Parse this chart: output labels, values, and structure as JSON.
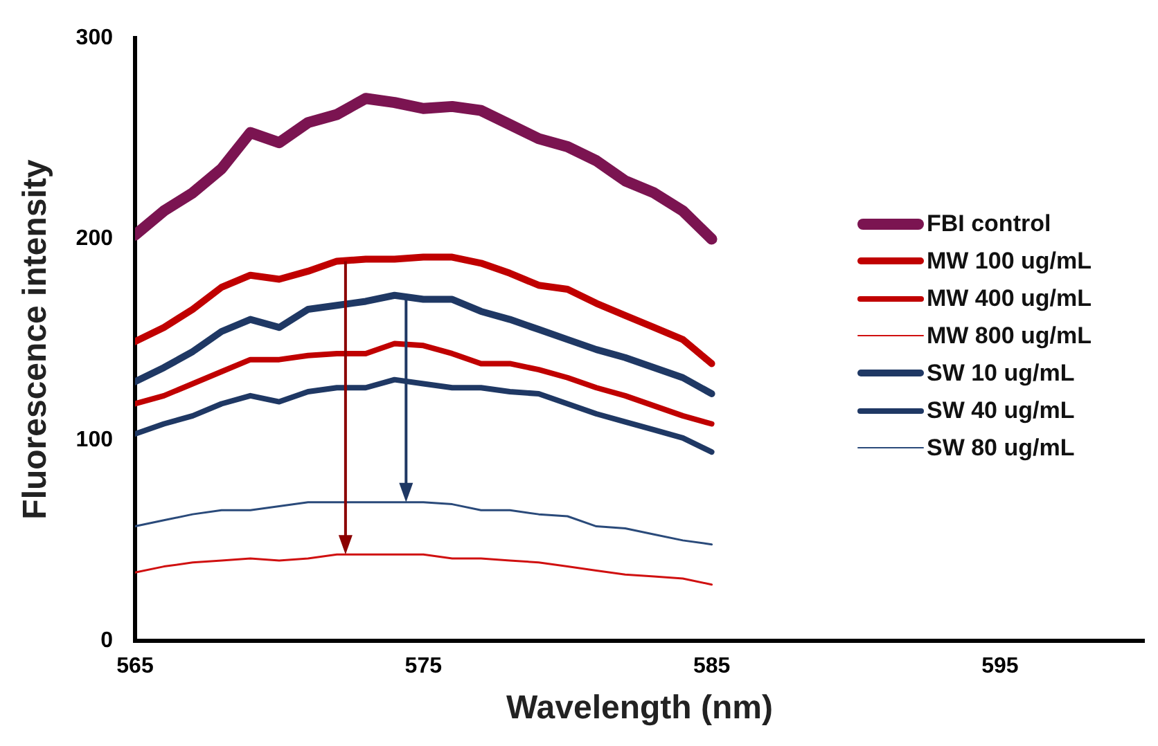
{
  "chart_data": {
    "type": "line",
    "xlabel": "Wavelength (nm)",
    "ylabel": "Fluorescence intensity",
    "x": [
      565,
      566,
      567,
      568,
      569,
      570,
      571,
      572,
      573,
      574,
      575,
      576,
      577,
      578,
      579,
      580,
      581,
      582,
      583,
      584,
      585
    ],
    "series": [
      {
        "name": "FBI control",
        "color": "#7b1451",
        "values": [
          202,
          214,
          223,
          235,
          253,
          248,
          258,
          262,
          270,
          268,
          265,
          266,
          264,
          257,
          250,
          246,
          239,
          229,
          223,
          214,
          200
        ]
      },
      {
        "name": "MW 100 ug/mL",
        "color": "#c00000",
        "values": [
          149,
          156,
          165,
          176,
          182,
          180,
          184,
          189,
          190,
          190,
          191,
          191,
          188,
          183,
          177,
          175,
          168,
          162,
          156,
          150,
          138
        ]
      },
      {
        "name": "MW 400 ug/mL",
        "color": "#c00000",
        "values": [
          118,
          122,
          128,
          134,
          140,
          140,
          142,
          143,
          143,
          148,
          147,
          143,
          138,
          138,
          135,
          131,
          126,
          122,
          117,
          112,
          108
        ]
      },
      {
        "name": "MW 800 ug/mL",
        "color": "#d01010",
        "values": [
          34,
          37,
          39,
          40,
          41,
          40,
          41,
          43,
          43,
          43,
          43,
          41,
          41,
          40,
          39,
          37,
          35,
          33,
          32,
          31,
          28
        ]
      },
      {
        "name": "SW 10 ug/mL",
        "color": "#1f3864",
        "values": [
          129,
          136,
          144,
          154,
          160,
          156,
          165,
          167,
          169,
          172,
          170,
          170,
          164,
          160,
          155,
          150,
          145,
          141,
          136,
          131,
          123
        ]
      },
      {
        "name": "SW 40 ug/mL",
        "color": "#1f3864",
        "values": [
          103,
          108,
          112,
          118,
          122,
          119,
          124,
          126,
          126,
          130,
          128,
          126,
          126,
          124,
          123,
          118,
          113,
          109,
          105,
          101,
          94
        ]
      },
      {
        "name": "SW 80 ug/mL",
        "color": "#2a4a7a",
        "values": [
          57,
          60,
          63,
          65,
          65,
          67,
          69,
          69,
          69,
          69,
          69,
          68,
          65,
          65,
          63,
          62,
          57,
          56,
          53,
          50,
          48
        ]
      }
    ],
    "xlim": [
      565,
      600
    ],
    "xticks": [
      565,
      575,
      585,
      595
    ],
    "ylim": [
      0,
      300
    ],
    "yticks": [
      0,
      100,
      200,
      300
    ],
    "grid": false,
    "legend": "right",
    "marker": "none",
    "line_style": "solid"
  }
}
